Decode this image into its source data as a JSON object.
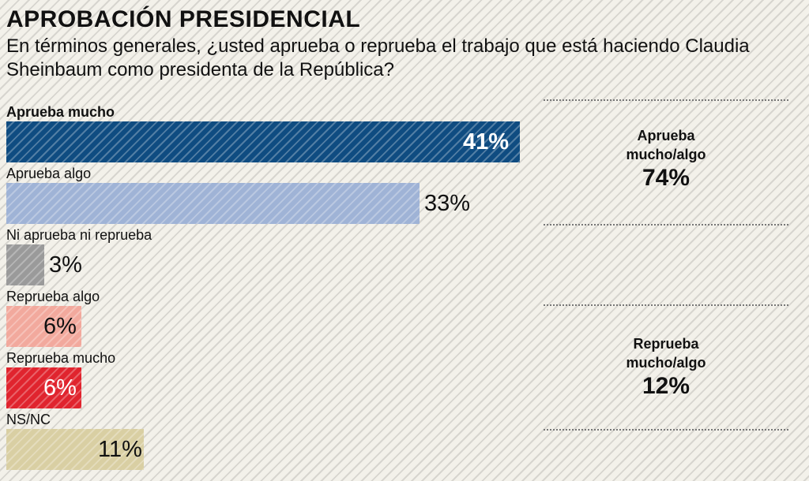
{
  "title": "APROBACIÓN PRESIDENCIAL",
  "subtitle": "En términos generales, ¿usted aprueba o reprueba el trabajo que está haciendo Claudia Sheinbaum como presidenta de la República?",
  "chart_data": {
    "type": "bar",
    "orientation": "horizontal",
    "categories": [
      "Aprueba mucho",
      "Aprueba algo",
      "Ni aprueba ni reprueba",
      "Reprueba algo",
      "Reprueba mucho",
      "NS/NC"
    ],
    "values": [
      41,
      33,
      3,
      6,
      6,
      11
    ],
    "value_labels": [
      "41%",
      "33%",
      "3%",
      "6%",
      "6%",
      "11%"
    ],
    "unit": "%",
    "colors": [
      "#0f4c81",
      "#9fb3d6",
      "#9a9a9a",
      "#f2a99d",
      "#e0242e",
      "#d9cfa3"
    ],
    "summaries": [
      {
        "label_line1": "Aprueba",
        "label_line2": "mucho/algo",
        "value": "74%"
      },
      {
        "label_line1": "Reprueba",
        "label_line2": "mucho/algo",
        "value": "12%"
      }
    ]
  }
}
